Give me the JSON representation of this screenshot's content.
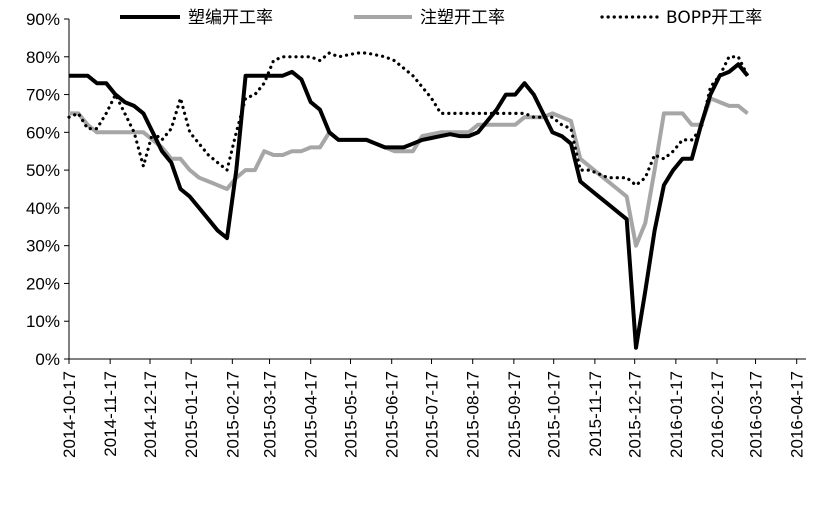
{
  "chart_data": {
    "type": "line",
    "title": "",
    "xlabel": "",
    "ylabel": "",
    "ylim": [
      0,
      90
    ],
    "y_ticks": [
      "0%",
      "10%",
      "20%",
      "30%",
      "40%",
      "50%",
      "60%",
      "70%",
      "80%",
      "90%"
    ],
    "x_tick_labels": [
      "2014-10-17",
      "2014-11-17",
      "2014-12-17",
      "2015-01-17",
      "2015-02-17",
      "2015-03-17",
      "2015-04-17",
      "2015-05-17",
      "2015-06-17",
      "2015-07-17",
      "2015-08-17",
      "2015-09-17",
      "2015-10-17",
      "2015-11-17",
      "2015-12-17",
      "2016-01-17",
      "2016-02-17",
      "2016-03-17",
      "2016-04-17"
    ],
    "x_range": [
      "2014-10-17",
      "2016-04-24"
    ],
    "grid": false,
    "legend_position": "top",
    "colors": {
      "series1": "#000000",
      "series2": "#a6a6a6",
      "series3": "#000000"
    },
    "series": [
      {
        "name": "塑编开工率",
        "style": "solid",
        "points": [
          [
            "2014-10-17",
            75
          ],
          [
            "2014-10-24",
            75
          ],
          [
            "2014-10-31",
            75
          ],
          [
            "2014-11-07",
            73
          ],
          [
            "2014-11-14",
            73
          ],
          [
            "2014-11-21",
            70
          ],
          [
            "2014-11-28",
            68
          ],
          [
            "2014-12-05",
            67
          ],
          [
            "2014-12-12",
            65
          ],
          [
            "2014-12-19",
            60
          ],
          [
            "2014-12-26",
            55
          ],
          [
            "2015-01-02",
            52
          ],
          [
            "2015-01-09",
            45
          ],
          [
            "2015-01-16",
            43
          ],
          [
            "2015-01-23",
            40
          ],
          [
            "2015-01-30",
            37
          ],
          [
            "2015-02-06",
            34
          ],
          [
            "2015-02-13",
            32
          ],
          [
            "2015-02-20",
            50
          ],
          [
            "2015-02-27",
            75
          ],
          [
            "2015-03-06",
            75
          ],
          [
            "2015-03-13",
            75
          ],
          [
            "2015-03-20",
            75
          ],
          [
            "2015-03-27",
            75
          ],
          [
            "2015-04-03",
            76
          ],
          [
            "2015-04-10",
            74
          ],
          [
            "2015-04-17",
            68
          ],
          [
            "2015-04-24",
            66
          ],
          [
            "2015-05-01",
            60
          ],
          [
            "2015-05-08",
            58
          ],
          [
            "2015-05-15",
            58
          ],
          [
            "2015-05-22",
            58
          ],
          [
            "2015-05-29",
            58
          ],
          [
            "2015-06-05",
            57
          ],
          [
            "2015-06-12",
            56
          ],
          [
            "2015-06-19",
            56
          ],
          [
            "2015-06-26",
            56
          ],
          [
            "2015-07-03",
            57
          ],
          [
            "2015-07-10",
            58
          ],
          [
            "2015-07-17",
            58.5
          ],
          [
            "2015-07-24",
            59
          ],
          [
            "2015-07-31",
            59.5
          ],
          [
            "2015-08-07",
            59
          ],
          [
            "2015-08-14",
            59
          ],
          [
            "2015-08-21",
            60
          ],
          [
            "2015-08-28",
            63
          ],
          [
            "2015-09-04",
            66
          ],
          [
            "2015-09-11",
            70
          ],
          [
            "2015-09-18",
            70
          ],
          [
            "2015-09-25",
            73
          ],
          [
            "2015-10-02",
            70
          ],
          [
            "2015-10-09",
            65
          ],
          [
            "2015-10-16",
            60
          ],
          [
            "2015-10-23",
            59
          ],
          [
            "2015-10-30",
            57
          ],
          [
            "2015-11-06",
            47
          ],
          [
            "2015-11-13",
            45
          ],
          [
            "2015-11-20",
            43
          ],
          [
            "2015-11-27",
            41
          ],
          [
            "2015-12-04",
            39
          ],
          [
            "2015-12-11",
            37
          ],
          [
            "2015-12-18",
            3
          ],
          [
            "2015-12-25",
            18
          ],
          [
            "2016-01-01",
            34
          ],
          [
            "2016-01-08",
            46
          ],
          [
            "2016-01-15",
            50
          ],
          [
            "2016-01-22",
            53
          ],
          [
            "2016-01-29",
            53
          ],
          [
            "2016-02-05",
            62
          ],
          [
            "2016-02-12",
            70
          ],
          [
            "2016-02-19",
            75
          ],
          [
            "2016-02-26",
            76
          ],
          [
            "2016-03-04",
            78
          ],
          [
            "2016-03-11",
            75
          ]
        ]
      },
      {
        "name": "注塑开工率",
        "style": "solid",
        "points": [
          [
            "2014-10-17",
            65
          ],
          [
            "2014-10-24",
            65
          ],
          [
            "2014-10-31",
            62
          ],
          [
            "2014-11-07",
            60
          ],
          [
            "2014-11-14",
            60
          ],
          [
            "2014-11-21",
            60
          ],
          [
            "2014-11-28",
            60
          ],
          [
            "2014-12-05",
            60
          ],
          [
            "2014-12-12",
            60
          ],
          [
            "2014-12-19",
            58
          ],
          [
            "2014-12-26",
            56
          ],
          [
            "2015-01-02",
            53
          ],
          [
            "2015-01-09",
            53
          ],
          [
            "2015-01-16",
            50
          ],
          [
            "2015-01-23",
            48
          ],
          [
            "2015-01-30",
            47
          ],
          [
            "2015-02-06",
            46
          ],
          [
            "2015-02-13",
            45
          ],
          [
            "2015-02-20",
            48
          ],
          [
            "2015-02-27",
            50
          ],
          [
            "2015-03-06",
            50
          ],
          [
            "2015-03-13",
            55
          ],
          [
            "2015-03-20",
            54
          ],
          [
            "2015-03-27",
            54
          ],
          [
            "2015-04-03",
            55
          ],
          [
            "2015-04-10",
            55
          ],
          [
            "2015-04-17",
            56
          ],
          [
            "2015-04-24",
            56
          ],
          [
            "2015-05-01",
            60
          ],
          [
            "2015-05-08",
            58
          ],
          [
            "2015-05-15",
            58
          ],
          [
            "2015-05-22",
            58
          ],
          [
            "2015-05-29",
            58
          ],
          [
            "2015-06-05",
            57
          ],
          [
            "2015-06-12",
            56
          ],
          [
            "2015-06-19",
            55
          ],
          [
            "2015-06-26",
            55
          ],
          [
            "2015-07-03",
            55
          ],
          [
            "2015-07-10",
            59
          ],
          [
            "2015-07-17",
            59.5
          ],
          [
            "2015-07-24",
            60
          ],
          [
            "2015-07-31",
            60
          ],
          [
            "2015-08-07",
            60
          ],
          [
            "2015-08-14",
            60
          ],
          [
            "2015-08-21",
            62
          ],
          [
            "2015-08-28",
            62
          ],
          [
            "2015-09-04",
            62
          ],
          [
            "2015-09-11",
            62
          ],
          [
            "2015-09-18",
            62
          ],
          [
            "2015-09-25",
            64
          ],
          [
            "2015-10-02",
            64
          ],
          [
            "2015-10-09",
            64
          ],
          [
            "2015-10-16",
            65
          ],
          [
            "2015-10-23",
            64
          ],
          [
            "2015-10-30",
            63
          ],
          [
            "2015-11-06",
            53
          ],
          [
            "2015-11-13",
            51
          ],
          [
            "2015-11-20",
            49
          ],
          [
            "2015-11-27",
            47
          ],
          [
            "2015-12-04",
            45
          ],
          [
            "2015-12-11",
            43
          ],
          [
            "2015-12-18",
            30
          ],
          [
            "2015-12-25",
            36
          ],
          [
            "2016-01-01",
            50
          ],
          [
            "2016-01-08",
            65
          ],
          [
            "2016-01-15",
            65
          ],
          [
            "2016-01-22",
            65
          ],
          [
            "2016-01-29",
            62
          ],
          [
            "2016-02-05",
            62
          ],
          [
            "2016-02-12",
            69
          ],
          [
            "2016-02-19",
            68
          ],
          [
            "2016-02-26",
            67
          ],
          [
            "2016-03-04",
            67
          ],
          [
            "2016-03-11",
            65
          ]
        ]
      },
      {
        "name": "BOPP开工率",
        "style": "dotted",
        "points": [
          [
            "2014-10-17",
            64
          ],
          [
            "2014-10-24",
            65
          ],
          [
            "2014-10-31",
            61
          ],
          [
            "2014-11-07",
            61
          ],
          [
            "2014-11-14",
            65
          ],
          [
            "2014-11-21",
            70
          ],
          [
            "2014-11-28",
            65
          ],
          [
            "2014-12-05",
            60
          ],
          [
            "2014-12-12",
            51
          ],
          [
            "2014-12-19",
            60
          ],
          [
            "2014-12-26",
            58
          ],
          [
            "2015-01-02",
            61
          ],
          [
            "2015-01-09",
            69
          ],
          [
            "2015-01-16",
            60
          ],
          [
            "2015-01-23",
            57
          ],
          [
            "2015-01-30",
            54
          ],
          [
            "2015-02-06",
            52
          ],
          [
            "2015-02-13",
            50
          ],
          [
            "2015-02-20",
            60
          ],
          [
            "2015-02-27",
            69
          ],
          [
            "2015-03-06",
            70
          ],
          [
            "2015-03-13",
            73
          ],
          [
            "2015-03-20",
            79
          ],
          [
            "2015-03-27",
            80
          ],
          [
            "2015-04-03",
            80
          ],
          [
            "2015-04-10",
            80
          ],
          [
            "2015-04-17",
            80
          ],
          [
            "2015-04-24",
            79
          ],
          [
            "2015-05-01",
            81
          ],
          [
            "2015-05-08",
            80
          ],
          [
            "2015-05-15",
            80.5
          ],
          [
            "2015-05-22",
            81
          ],
          [
            "2015-05-29",
            81
          ],
          [
            "2015-06-05",
            80.5
          ],
          [
            "2015-06-12",
            80
          ],
          [
            "2015-06-19",
            79
          ],
          [
            "2015-06-26",
            77
          ],
          [
            "2015-07-03",
            75
          ],
          [
            "2015-07-10",
            72
          ],
          [
            "2015-07-17",
            69
          ],
          [
            "2015-07-24",
            65
          ],
          [
            "2015-07-31",
            65
          ],
          [
            "2015-08-07",
            65
          ],
          [
            "2015-08-14",
            65
          ],
          [
            "2015-08-21",
            65
          ],
          [
            "2015-08-28",
            65
          ],
          [
            "2015-09-04",
            65
          ],
          [
            "2015-09-11",
            65
          ],
          [
            "2015-09-18",
            65
          ],
          [
            "2015-09-25",
            65
          ],
          [
            "2015-10-02",
            64
          ],
          [
            "2015-10-09",
            64
          ],
          [
            "2015-10-16",
            64
          ],
          [
            "2015-10-23",
            62
          ],
          [
            "2015-10-30",
            61
          ],
          [
            "2015-11-06",
            50
          ],
          [
            "2015-11-13",
            50
          ],
          [
            "2015-11-20",
            49
          ],
          [
            "2015-11-27",
            48
          ],
          [
            "2015-12-04",
            48
          ],
          [
            "2015-12-11",
            48
          ],
          [
            "2015-12-18",
            46
          ],
          [
            "2015-12-25",
            48
          ],
          [
            "2016-01-01",
            54
          ],
          [
            "2016-01-08",
            53
          ],
          [
            "2016-01-15",
            55
          ],
          [
            "2016-01-22",
            58
          ],
          [
            "2016-01-29",
            58
          ],
          [
            "2016-02-05",
            61
          ],
          [
            "2016-02-12",
            72
          ],
          [
            "2016-02-19",
            75
          ],
          [
            "2016-02-26",
            80
          ],
          [
            "2016-03-04",
            80
          ],
          [
            "2016-03-11",
            75
          ]
        ]
      }
    ]
  }
}
